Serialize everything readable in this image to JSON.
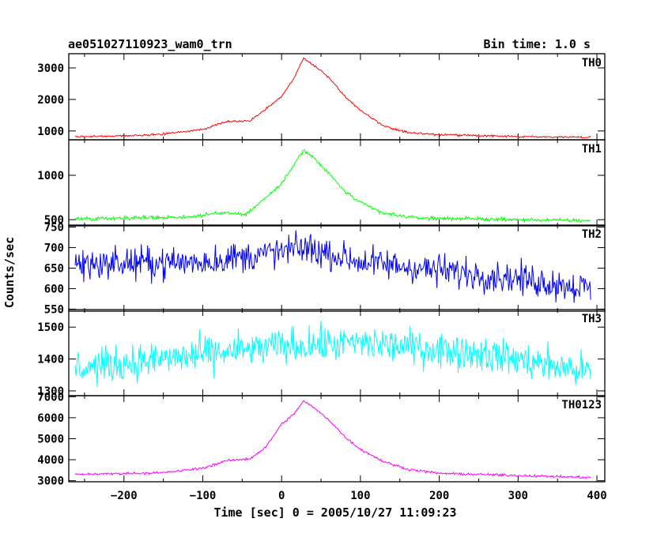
{
  "header": {
    "title": "ae051027110923_wam0_trn",
    "bin_time": "Bin time: 1.0 s"
  },
  "chart_data": {
    "type": "line",
    "title": "ae051027110923_wam0_trn",
    "xlabel": "Time [sec] 0 = 2005/10/27 11:09:23",
    "ylabel": "Counts/sec",
    "xlim": [
      -270,
      410
    ],
    "x_ticks": [
      "−200",
      "−100",
      "0",
      "100",
      "200",
      "300",
      "400"
    ],
    "x_tick_values": [
      -200,
      -100,
      0,
      100,
      200,
      300,
      400
    ],
    "grid": false,
    "legend": "none",
    "panels": [
      {
        "series_name": "TH0",
        "color": "#ff0000",
        "ylim": [
          720,
          3450
        ],
        "y_ticks": [
          "1000",
          "2000",
          "3000"
        ],
        "y_tick_values": [
          1000,
          2000,
          3000
        ],
        "noise": 30,
        "profile": [
          [
            -262,
            820
          ],
          [
            -200,
            840
          ],
          [
            -150,
            900
          ],
          [
            -100,
            1050
          ],
          [
            -70,
            1300
          ],
          [
            -40,
            1320
          ],
          [
            -20,
            1700
          ],
          [
            0,
            2100
          ],
          [
            15,
            2650
          ],
          [
            28,
            3300
          ],
          [
            40,
            3100
          ],
          [
            60,
            2700
          ],
          [
            80,
            2100
          ],
          [
            100,
            1650
          ],
          [
            130,
            1150
          ],
          [
            160,
            950
          ],
          [
            200,
            880
          ],
          [
            300,
            820
          ],
          [
            392,
            800
          ]
        ]
      },
      {
        "series_name": "TH1",
        "color": "#00ff00",
        "ylim": [
          430,
          1400
        ],
        "y_ticks": [
          "500",
          "1000"
        ],
        "y_tick_values": [
          500,
          1000
        ],
        "noise": 20,
        "profile": [
          [
            -262,
            510
          ],
          [
            -200,
            520
          ],
          [
            -120,
            530
          ],
          [
            -70,
            580
          ],
          [
            -45,
            560
          ],
          [
            -20,
            750
          ],
          [
            0,
            900
          ],
          [
            15,
            1120
          ],
          [
            28,
            1280
          ],
          [
            40,
            1200
          ],
          [
            60,
            1020
          ],
          [
            80,
            820
          ],
          [
            100,
            690
          ],
          [
            130,
            570
          ],
          [
            170,
            520
          ],
          [
            300,
            500
          ],
          [
            392,
            490
          ]
        ]
      },
      {
        "series_name": "TH2",
        "color": "#0000ff",
        "ylim": [
          545,
          755
        ],
        "y_ticks": [
          "550",
          "600",
          "650",
          "700",
          "750"
        ],
        "y_tick_values": [
          550,
          600,
          650,
          700,
          750
        ],
        "noise": 38,
        "profile": [
          [
            -262,
            660
          ],
          [
            -100,
            665
          ],
          [
            0,
            690
          ],
          [
            30,
            700
          ],
          [
            100,
            665
          ],
          [
            200,
            645
          ],
          [
            300,
            625
          ],
          [
            392,
            600
          ]
        ]
      },
      {
        "series_name": "TH3",
        "color": "#00ffff",
        "ylim": [
          1285,
          1555
        ],
        "y_ticks": [
          "1300",
          "1400",
          "1500"
        ],
        "y_tick_values": [
          1300,
          1400,
          1500
        ],
        "noise": 55,
        "profile": [
          [
            -262,
            1370
          ],
          [
            -150,
            1400
          ],
          [
            0,
            1440
          ],
          [
            100,
            1450
          ],
          [
            250,
            1420
          ],
          [
            392,
            1360
          ]
        ]
      },
      {
        "series_name": "TH0123",
        "color": "#ff00ff",
        "ylim": [
          2950,
          7050
        ],
        "y_ticks": [
          "3000",
          "4000",
          "5000",
          "6000",
          "7000"
        ],
        "y_tick_values": [
          3000,
          4000,
          5000,
          6000,
          7000
        ],
        "noise": 55,
        "profile": [
          [
            -262,
            3300
          ],
          [
            -150,
            3380
          ],
          [
            -100,
            3600
          ],
          [
            -70,
            3950
          ],
          [
            -40,
            4050
          ],
          [
            -20,
            4600
          ],
          [
            0,
            5700
          ],
          [
            15,
            6150
          ],
          [
            28,
            6800
          ],
          [
            40,
            6500
          ],
          [
            60,
            5900
          ],
          [
            80,
            5100
          ],
          [
            100,
            4500
          ],
          [
            130,
            3900
          ],
          [
            160,
            3550
          ],
          [
            200,
            3350
          ],
          [
            300,
            3250
          ],
          [
            392,
            3150
          ]
        ]
      }
    ]
  }
}
